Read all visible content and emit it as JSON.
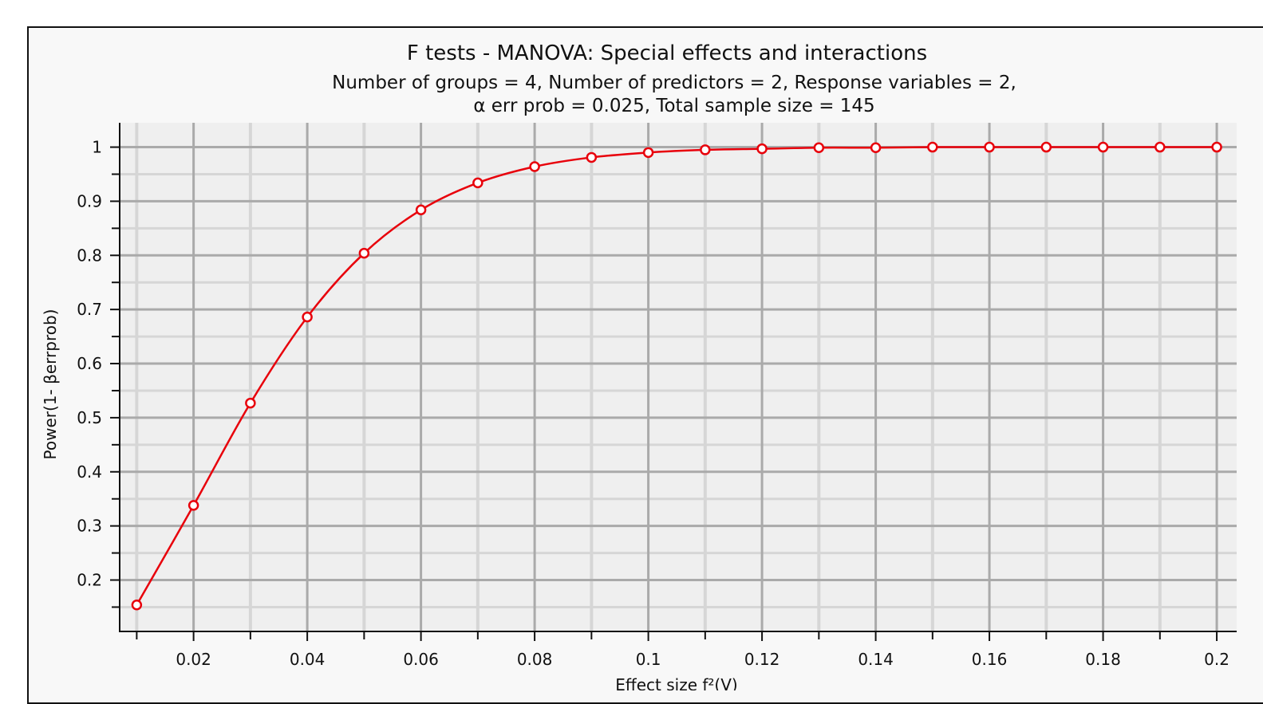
{
  "chart_data": {
    "type": "line",
    "title": "F tests - MANOVA: Special effects and interactions",
    "subtitle_line1": "Number of groups = 4, Number of predictors = 2, Response variables = 2,",
    "subtitle_line2": "α err prob = 0.025, Total sample size = 145",
    "xlabel": "Effect size f²(V)",
    "ylabel": "Power(1- βerrprob)",
    "xlim": [
      0.007,
      0.2035
    ],
    "ylim": [
      0.105,
      1.045
    ],
    "x_major_ticks": [
      0.02,
      0.04,
      0.06,
      0.08,
      0.1,
      0.12,
      0.14,
      0.16,
      0.18,
      0.2
    ],
    "x_tick_labels": [
      "0.02",
      "0.04",
      "0.06",
      "0.08",
      "0.1",
      "0.12",
      "0.14",
      "0.16",
      "0.18",
      "0.2"
    ],
    "x_minor_ticks": [
      0.01,
      0.03,
      0.05,
      0.07,
      0.09,
      0.11,
      0.13,
      0.15,
      0.17,
      0.19
    ],
    "y_major_ticks": [
      0.2,
      0.3,
      0.4,
      0.5,
      0.6,
      0.7,
      0.8,
      0.9,
      1
    ],
    "y_tick_labels": [
      "0.2",
      "0.3",
      "0.4",
      "0.5",
      "0.6",
      "0.7",
      "0.8",
      "0.9",
      "1"
    ],
    "y_minor_ticks": [
      0.15,
      0.25,
      0.35,
      0.45,
      0.55,
      0.65,
      0.75,
      0.85,
      0.95
    ],
    "grid": true,
    "series_color": "#e8000b",
    "plot_bg": "#efefef",
    "grid_color": "#aaaaaa",
    "series": [
      {
        "x": [
          0.01,
          0.02,
          0.03,
          0.04,
          0.05,
          0.06,
          0.07,
          0.08,
          0.09,
          0.1,
          0.11,
          0.12,
          0.13,
          0.14,
          0.15,
          0.16,
          0.17,
          0.18,
          0.19,
          0.2
        ],
        "values": [
          0.154,
          0.338,
          0.527,
          0.686,
          0.804,
          0.884,
          0.934,
          0.964,
          0.981,
          0.99,
          0.995,
          0.997,
          0.999,
          0.999,
          1.0,
          1.0,
          1.0,
          1.0,
          1.0,
          1.0
        ]
      }
    ]
  }
}
